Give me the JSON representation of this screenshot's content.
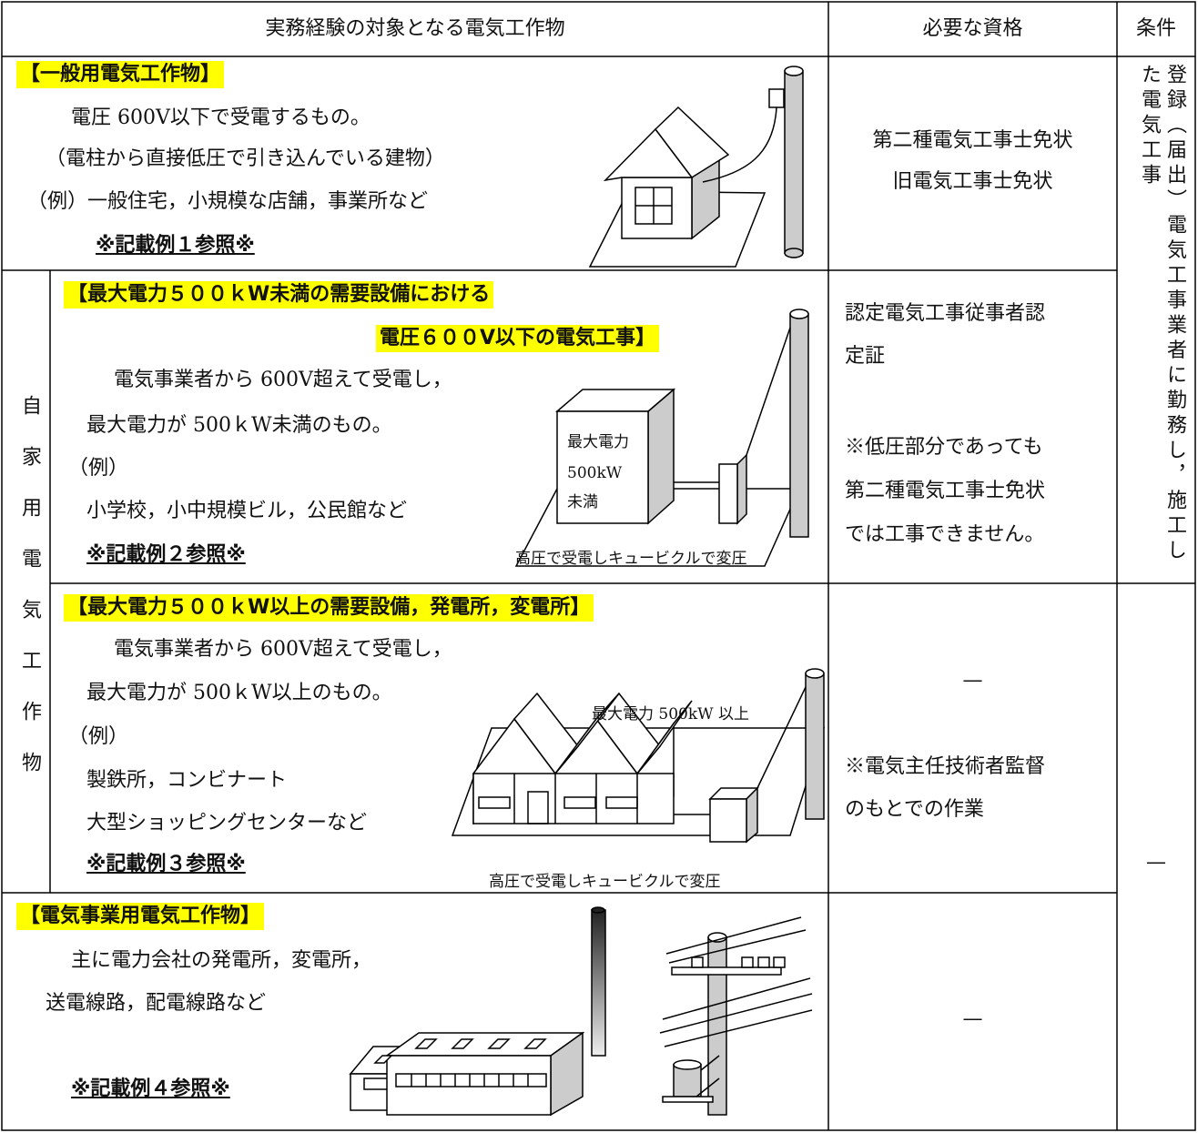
{
  "header": [
    "実務経験の対象となる電気工作物",
    "必要な資格",
    "条件"
  ],
  "group_label": "自家用電気工作物",
  "condition": "登録（届出）電気工事業者に勤務し，施工した電気工事",
  "condition_none": "—",
  "rows": [
    {
      "title": [
        "【一般用電気工作物】"
      ],
      "lines": [
        "電圧 600V以下で受電するもの。",
        "（電柱から直接低圧で引き込んでいる建物）",
        "（例）一般住宅，小規模な店舗，事業所など"
      ],
      "reference": "※記載例１参照※",
      "qualification": [
        "第二種電気工事士免状",
        "旧電気工事士免状"
      ]
    },
    {
      "title": [
        "【最大電力５００ｋW未満の需要設備における",
        "電圧６００V以下の電気工事】"
      ],
      "lines": [
        "電気事業者から 600V超えて受電し，",
        "最大電力が 500ｋW未満のもの。",
        "（例）",
        "小学校，小中規模ビル，公民館など"
      ],
      "reference": "※記載例２参照※",
      "illustration": {
        "label": [
          "最大電力",
          "500kW",
          "未満"
        ],
        "caption": "高圧で受電しキュービクルで変圧"
      },
      "qualification": [
        "認定電気工事従事者認",
        "定証"
      ],
      "note": [
        "※低圧部分であっても",
        "第二種電気工事士免状",
        "では工事できません。"
      ]
    },
    {
      "title": [
        "【最大電力５００ｋW以上の需要設備，発電所，変電所】"
      ],
      "lines": [
        "電気事業者から 600V超えて受電し，",
        "最大電力が 500ｋW以上のもの。",
        "（例）",
        "製鉄所，コンビナート",
        "大型ショッピングセンターなど"
      ],
      "reference": "※記載例３参照※",
      "illustration": {
        "label": [
          "最大電力 500kW 以上"
        ],
        "caption": "高圧で受電しキュービクルで変圧"
      },
      "qualification": [
        "—"
      ],
      "note": [
        "※電気主任技術者監督",
        "のもとでの作業"
      ]
    },
    {
      "title": [
        "【電気事業用電気工作物】"
      ],
      "lines": [
        "主に電力会社の発電所，変電所，",
        "送電線路，配電線路など"
      ],
      "reference": "※記載例４参照※",
      "qualification": [
        "—"
      ]
    }
  ]
}
